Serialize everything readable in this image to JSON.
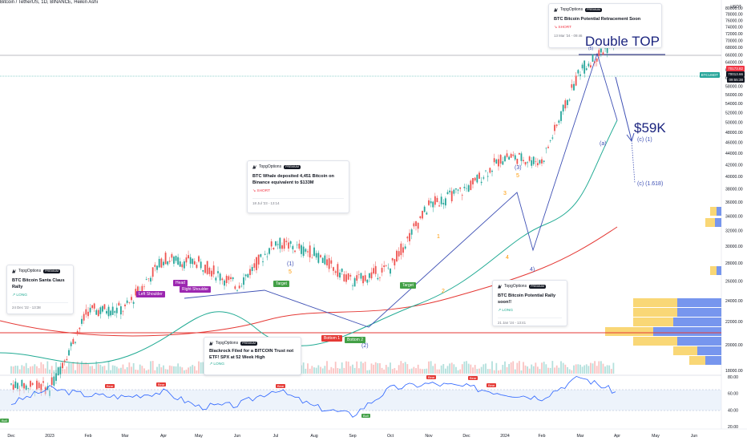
{
  "header": {
    "symbol_line": "Bitcoin / TetherUS, 1D, BINANCE, Heikin Ashi"
  },
  "axis": {
    "currency": "USDT",
    "price_ticks": [
      "80000.00",
      "78000.00",
      "76000.00",
      "74000.00",
      "72000.00",
      "70000.00",
      "68000.00",
      "66000.00",
      "64000.00",
      "62000.00",
      "60000.00",
      "58000.00",
      "56000.00",
      "54000.00",
      "52000.00",
      "50000.00",
      "48000.00",
      "46000.00",
      "44000.00",
      "42000.00",
      "40000.00",
      "38000.00",
      "36000.00",
      "34000.00",
      "32000.00",
      "30000.00",
      "28000.00",
      "26000.00",
      "24000.00",
      "22000.00",
      "20000.00",
      "18000.00"
    ],
    "rsi_ticks": [
      "80.00",
      "60.00",
      "40.00",
      "20.00"
    ],
    "time_ticks": [
      "Dec",
      "2023",
      "Feb",
      "Mar",
      "Apr",
      "May",
      "Jun",
      "Jul",
      "Aug",
      "Sep",
      "Oct",
      "Nov",
      "Dec",
      "2024",
      "Feb",
      "Mar",
      "Apr",
      "May",
      "Jun"
    ],
    "price_tags": [
      {
        "text": "70173.82",
        "color": "#f23645"
      },
      {
        "text": "70013.66",
        "color": "#131722"
      },
      {
        "text": "09:55:38",
        "color": "#131722"
      },
      {
        "text": "BTCUSDT",
        "color": "#26a69a"
      }
    ]
  },
  "cards": [
    {
      "brand": "TopgOptions",
      "badge": "PREMIUM",
      "title": "BTC Bitcoin Potential Retracement Soon",
      "direction": "SHORT",
      "direction_icon": "↘",
      "time": "13 Mar '24 - 09:46"
    },
    {
      "brand": "TopgOptions",
      "badge": "PREMIUM",
      "title": "BTC Whale deposited 4,451 Bitcoin on Binance equivalent to $133M",
      "direction": "SHORT",
      "direction_icon": "↘",
      "time": "18 Jul '23 - 13:14"
    },
    {
      "brand": "TopgOptions",
      "badge": "PREMIUM",
      "title": "BTC Bitcoin Santa Claus Rally",
      "direction": "LONG",
      "direction_icon": "↗",
      "time": "24 Dec '22 - 13:38"
    },
    {
      "brand": "TopgOptions",
      "badge": "PREMIUM",
      "title": "Blackrock Filed for a BITCOIN Trust not ETF! SPX at 52 Week High",
      "direction": "LONG",
      "direction_icon": "↗",
      "time": ""
    },
    {
      "brand": "TopgOptions",
      "badge": "PREMIUM",
      "title": "BTC Bitcoin Potential Rally soon!!",
      "direction": "LONG",
      "direction_icon": "↗",
      "time": "21 Jan '24 - 13:41"
    }
  ],
  "annotations": {
    "double_top": "Double TOP",
    "target_price": "$59K",
    "wave_c1": "(c) (1)",
    "wave_c1618": "(c) (1.618)",
    "wave_a": "(a)",
    "wave_3": "(3)",
    "wave_3b": "3",
    "wave_5a": "5",
    "wave_5b": "5",
    "wave_1": "(1)",
    "wave_1b": "1",
    "wave_4": "4",
    "wave_4b": "4)",
    "wave_2": "(2)",
    "wave_2b": "2",
    "wave_top_num": "(5)"
  },
  "pattern_labels": {
    "left_shoulder": "Left Shoulder",
    "head": "Head",
    "right_shoulder": "Right Shoulder",
    "target_1": "Target",
    "target_2": "Target",
    "bottom_1": "Bottom 1",
    "bottom_2": "Bottom 2",
    "rsi_bear": "Bear",
    "rsi_bull": "Bull"
  },
  "chart_data": {
    "type": "line",
    "title": "Bitcoin / TetherUS, 1D, BINANCE, Heikin Ashi",
    "x": [
      "Dec 2022",
      "Jan 2023",
      "Feb 2023",
      "Mar 2023",
      "Apr 2023",
      "May 2023",
      "Jun 2023",
      "Jul 2023",
      "Aug 2023",
      "Sep 2023",
      "Oct 2023",
      "Nov 2023",
      "Dec 2023",
      "Jan 2024",
      "Feb 2024",
      "Mar 2024",
      "Apr 2024"
    ],
    "series": [
      {
        "values": [
          17000,
          16700,
          23000,
          23200,
          28500,
          28000,
          25500,
          30500,
          29200,
          25900,
          27500,
          35500,
          38000,
          43500,
          42500,
          62000,
          70000
        ]
      }
    ],
    "ylim": [
      18000,
      80000
    ],
    "y_scale": "log",
    "last_price": 70173.82,
    "rsi": {
      "values": [
        48,
        66,
        58,
        56,
        62,
        44,
        46,
        65,
        44,
        34,
        66,
        72,
        68,
        60,
        55,
        80,
        62
      ],
      "ylim": [
        20,
        80
      ]
    }
  }
}
